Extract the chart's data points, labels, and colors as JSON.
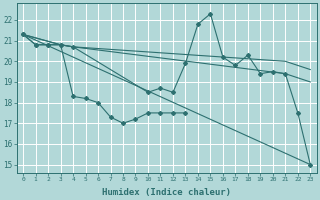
{
  "xlabel": "Humidex (Indice chaleur)",
  "bg_color": "#b2d8d8",
  "grid_color": "#ffffff",
  "line_color": "#2d7070",
  "yticks": [
    15,
    16,
    17,
    18,
    19,
    20,
    21,
    22
  ],
  "xticks": [
    0,
    1,
    2,
    3,
    4,
    5,
    6,
    7,
    8,
    9,
    10,
    11,
    12,
    13,
    14,
    15,
    16,
    17,
    18,
    19,
    20,
    21,
    22,
    23
  ],
  "xlim": [
    -0.5,
    23.5
  ],
  "ylim": [
    14.6,
    22.8
  ],
  "series": [
    {
      "x": [
        0,
        1,
        2,
        3,
        4,
        10,
        11,
        12,
        13,
        14,
        15,
        16,
        17,
        18,
        19,
        20,
        21,
        22,
        23
      ],
      "y": [
        21.3,
        20.8,
        20.8,
        20.8,
        20.7,
        18.5,
        18.7,
        18.5,
        19.9,
        21.8,
        22.3,
        20.2,
        19.8,
        20.3,
        19.4,
        19.5,
        19.4,
        17.5,
        15.0
      ],
      "marker": true
    },
    {
      "x": [
        0,
        1,
        2,
        3,
        4,
        5,
        6,
        7,
        8,
        9,
        10,
        11,
        12,
        13
      ],
      "y": [
        21.3,
        20.8,
        20.8,
        20.8,
        18.3,
        18.2,
        18.0,
        17.3,
        17.0,
        17.2,
        17.5,
        17.5,
        17.5,
        17.5
      ],
      "marker": true
    },
    {
      "x": [
        0,
        3,
        4,
        21,
        23
      ],
      "y": [
        21.3,
        20.8,
        20.7,
        20.0,
        19.6
      ],
      "marker": false
    },
    {
      "x": [
        0,
        3,
        4,
        21,
        23
      ],
      "y": [
        21.3,
        20.8,
        20.7,
        19.4,
        19.0
      ],
      "marker": false
    },
    {
      "x": [
        0,
        23
      ],
      "y": [
        21.3,
        15.0
      ],
      "marker": false
    }
  ]
}
